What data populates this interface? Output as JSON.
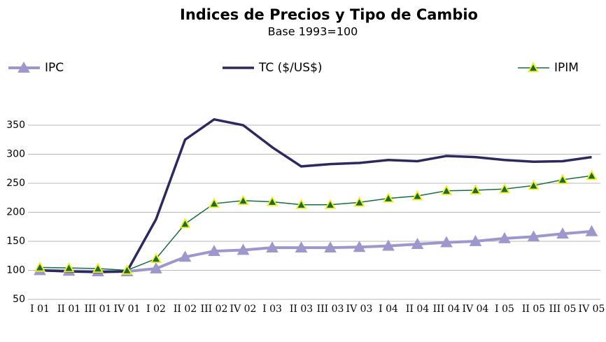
{
  "chart_data": {
    "type": "line",
    "title": "Indices de Precios y Tipo de Cambio",
    "subtitle": "Base 1993=100",
    "categories": [
      "I 01",
      "II 01",
      "III 01",
      "IV 01",
      "I 02",
      "II 02",
      "III 02",
      "IV 02",
      "I 03",
      "II 03",
      "III 03",
      "IV 03",
      "I 04",
      "II 04",
      "III 04",
      "IV 04",
      "I 05",
      "II 05",
      "III 05",
      "IV 05"
    ],
    "series": [
      {
        "name": "IPC",
        "color": "#9c98cc",
        "values": [
          100,
          99,
          98,
          98,
          103,
          123,
          133,
          135,
          139,
          139,
          139,
          140,
          142,
          145,
          148,
          150,
          155,
          158,
          163,
          167
        ]
      },
      {
        "name": "TC ($/US$)",
        "color": "#2b2a5e",
        "values": [
          100,
          98,
          97,
          98,
          188,
          325,
          360,
          350,
          312,
          279,
          283,
          285,
          290,
          288,
          297,
          295,
          290,
          287,
          288,
          295
        ]
      },
      {
        "name": "IPIM",
        "color": "#1b6b3a",
        "values": [
          105,
          104,
          103,
          100,
          120,
          180,
          215,
          220,
          218,
          213,
          213,
          217,
          224,
          228,
          237,
          238,
          240,
          246,
          256,
          263
        ]
      }
    ],
    "ylim": [
      50,
      375
    ],
    "yticks": [
      50,
      100,
      150,
      200,
      250,
      300,
      350
    ],
    "grid": true
  }
}
